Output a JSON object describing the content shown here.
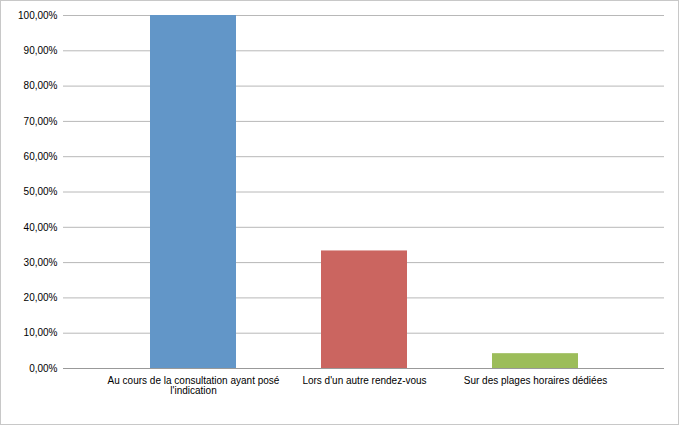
{
  "chart_data": {
    "type": "bar",
    "categories": [
      "Au cours de la consultation ayant posé l'indication",
      "Lors d'un autre rendez-vous",
      "Sur des plages horaires dédiées"
    ],
    "values": [
      100,
      33.3,
      4.2
    ],
    "colors": [
      "#6296c8",
      "#cb6560",
      "#9cbd5a"
    ],
    "ylim": [
      0,
      100
    ],
    "yticks": [
      {
        "value": 0,
        "label": "0,00%"
      },
      {
        "value": 10,
        "label": "10,00%"
      },
      {
        "value": 20,
        "label": "20,00%"
      },
      {
        "value": 30,
        "label": "30,00%"
      },
      {
        "value": 40,
        "label": "40,00%"
      },
      {
        "value": 50,
        "label": "50,00%"
      },
      {
        "value": 60,
        "label": "60,00%"
      },
      {
        "value": 70,
        "label": "70,00%"
      },
      {
        "value": 80,
        "label": "80,00%"
      },
      {
        "value": 90,
        "label": "90,00%"
      },
      {
        "value": 100,
        "label": "100,00%"
      }
    ],
    "grid": true
  }
}
